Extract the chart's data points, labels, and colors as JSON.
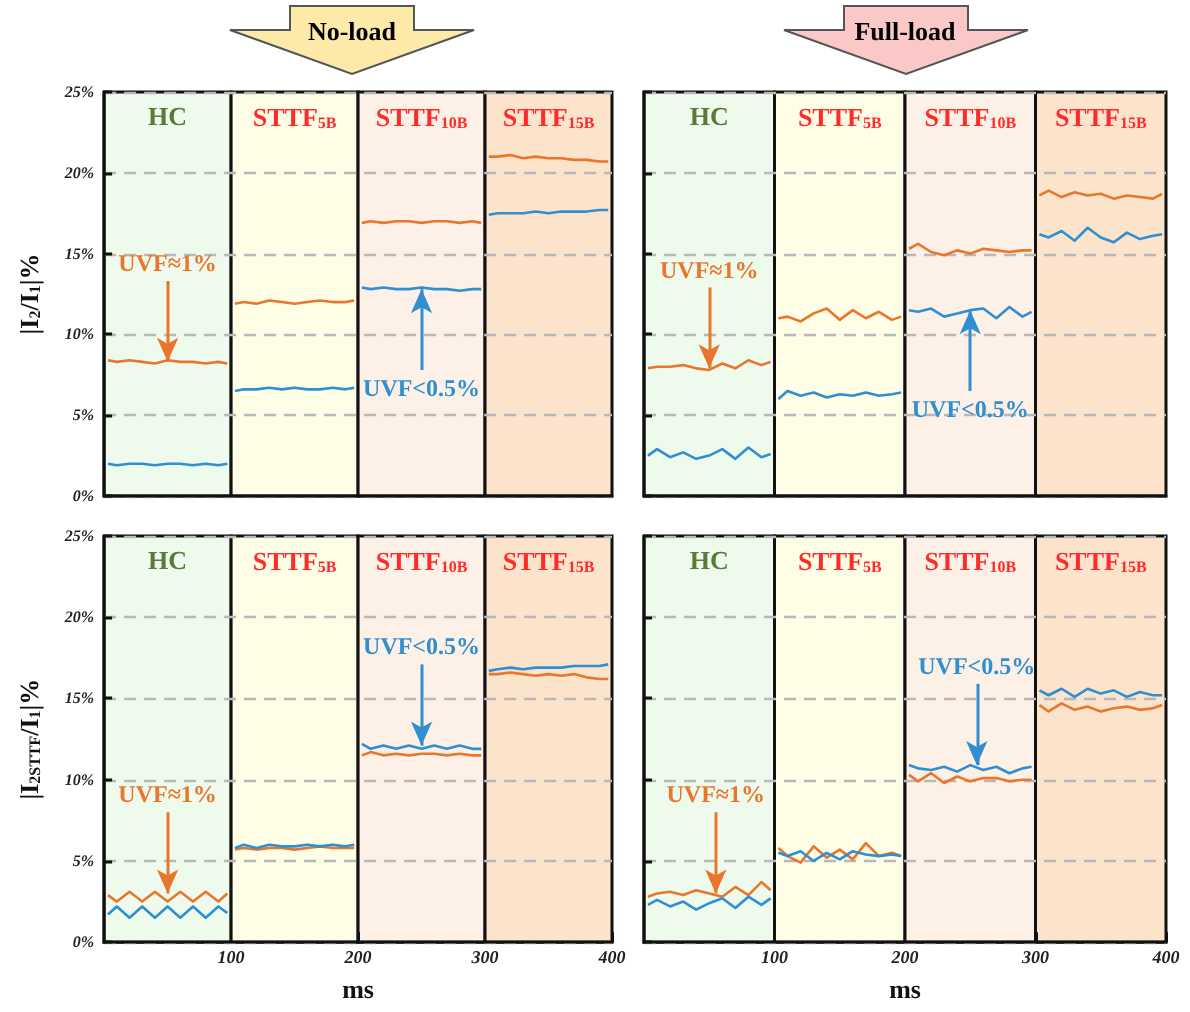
{
  "chart_data": [
    {
      "type": "line",
      "title": "No-load",
      "ylabel": "|I$_{2}$/I$_{1}$|%",
      "tick_labels": "y",
      "grid": "y",
      "line_style": "solid",
      "x": [
        3,
        10,
        20,
        30,
        40,
        50,
        60,
        70,
        80,
        90,
        97,
        100,
        103,
        110,
        120,
        130,
        140,
        150,
        160,
        170,
        180,
        190,
        197,
        200,
        203,
        210,
        220,
        230,
        240,
        250,
        260,
        270,
        280,
        290,
        297,
        300,
        303,
        310,
        320,
        330,
        340,
        350,
        360,
        370,
        380,
        390,
        397
      ],
      "xlim": [
        0,
        400
      ],
      "ylim": [
        0,
        25
      ],
      "yticks": [
        {
          "value": 0,
          "label": "0%"
        },
        {
          "value": 5,
          "label": "5%"
        },
        {
          "value": 10,
          "label": "10%"
        },
        {
          "value": 15,
          "label": "15%"
        },
        {
          "value": 20,
          "label": "20%"
        },
        {
          "value": 25,
          "label": "25%"
        }
      ],
      "series": [
        {
          "color": "#e8762d",
          "values": [
            8.4,
            8.3,
            8.4,
            8.3,
            8.2,
            8.4,
            8.3,
            8.3,
            8.2,
            8.3,
            8.2,
            null,
            11.9,
            12.0,
            11.9,
            12.1,
            12.0,
            11.9,
            12.0,
            12.1,
            12.0,
            12.0,
            12.1,
            null,
            16.9,
            17.0,
            16.9,
            17.0,
            17.0,
            16.9,
            17.0,
            17.0,
            16.9,
            17.0,
            16.9,
            null,
            21.0,
            21.0,
            21.1,
            20.9,
            21.0,
            20.9,
            20.9,
            20.8,
            20.8,
            20.7,
            20.7
          ]
        },
        {
          "color": "#2f8fd0",
          "values": [
            2.0,
            1.9,
            2.0,
            2.0,
            1.9,
            2.0,
            2.0,
            1.9,
            2.0,
            1.9,
            2.0,
            null,
            6.5,
            6.6,
            6.6,
            6.7,
            6.6,
            6.7,
            6.6,
            6.6,
            6.7,
            6.6,
            6.7,
            null,
            12.9,
            12.8,
            12.9,
            12.8,
            12.8,
            12.9,
            12.8,
            12.8,
            12.7,
            12.8,
            12.8,
            null,
            17.4,
            17.5,
            17.5,
            17.5,
            17.6,
            17.5,
            17.6,
            17.6,
            17.6,
            17.7,
            17.7
          ]
        }
      ],
      "bands": [
        {
          "axis": "x",
          "from": 0,
          "to": 100,
          "label": "HC",
          "color": "#eefaec"
        },
        {
          "axis": "x",
          "from": 100,
          "to": 200,
          "label": "STTF$_{5B}$",
          "color": "#fefde6"
        },
        {
          "axis": "x",
          "from": 200,
          "to": 300,
          "label": "STTF$_{10B}$",
          "color": "#fdf0e6"
        },
        {
          "axis": "x",
          "from": 300,
          "to": 400,
          "label": "STTF$_{15B}$",
          "color": "#fbe3cc"
        }
      ],
      "annotations": [
        {
          "text": "UVF≈1%",
          "x": 50,
          "y": 8.3
        },
        {
          "text": "UVF<0.5%",
          "x": 250,
          "y": 12.8
        }
      ]
    },
    {
      "type": "line",
      "title": "Full-load",
      "tick_labels": false,
      "grid": "y",
      "line_style": "solid",
      "x": [
        3,
        10,
        20,
        30,
        40,
        50,
        60,
        70,
        80,
        90,
        97,
        100,
        103,
        110,
        120,
        130,
        140,
        150,
        160,
        170,
        180,
        190,
        197,
        200,
        203,
        210,
        220,
        230,
        240,
        250,
        260,
        270,
        280,
        290,
        297,
        300,
        303,
        310,
        320,
        330,
        340,
        350,
        360,
        370,
        380,
        390,
        397
      ],
      "xlim": [
        0,
        400
      ],
      "ylim": [
        0,
        25
      ],
      "yticks": [
        0,
        5,
        10,
        15,
        20,
        25
      ],
      "series": [
        {
          "color": "#e8762d",
          "values": [
            7.9,
            8.0,
            8.0,
            8.1,
            7.9,
            7.8,
            8.2,
            7.9,
            8.4,
            8.1,
            8.3,
            null,
            11.0,
            11.1,
            10.8,
            11.3,
            11.6,
            10.9,
            11.5,
            11.0,
            11.4,
            10.9,
            11.1,
            null,
            15.3,
            15.6,
            15.1,
            14.9,
            15.2,
            15.0,
            15.3,
            15.2,
            15.1,
            15.2,
            15.2,
            null,
            18.6,
            18.9,
            18.5,
            18.8,
            18.6,
            18.7,
            18.4,
            18.6,
            18.5,
            18.4,
            18.7
          ]
        },
        {
          "color": "#2f8fd0",
          "values": [
            2.5,
            2.9,
            2.4,
            2.7,
            2.3,
            2.5,
            2.9,
            2.3,
            3.0,
            2.4,
            2.6,
            null,
            6.0,
            6.5,
            6.2,
            6.4,
            6.1,
            6.3,
            6.2,
            6.4,
            6.2,
            6.3,
            6.4,
            null,
            11.5,
            11.4,
            11.6,
            11.1,
            11.3,
            11.5,
            11.6,
            11.0,
            11.7,
            11.1,
            11.4,
            null,
            16.2,
            16.0,
            16.4,
            15.8,
            16.6,
            16.0,
            15.7,
            16.3,
            15.9,
            16.1,
            16.2
          ]
        }
      ],
      "bands": [
        {
          "axis": "x",
          "from": 0,
          "to": 100,
          "label": "HC",
          "color": "#eefaec"
        },
        {
          "axis": "x",
          "from": 100,
          "to": 200,
          "label": "STTF$_{5B}$",
          "color": "#fefde6"
        },
        {
          "axis": "x",
          "from": 200,
          "to": 300,
          "label": "STTF$_{10B}$",
          "color": "#fdf0e6"
        },
        {
          "axis": "x",
          "from": 300,
          "to": 400,
          "label": "STTF$_{15B}$",
          "color": "#fbe3cc"
        }
      ],
      "annotations": [
        {
          "text": "UVF≈1%",
          "x": 50,
          "y": 7.9
        },
        {
          "text": "UVF<0.5%",
          "x": 250,
          "y": 11.5
        }
      ]
    },
    {
      "type": "line",
      "xlabel": "ms",
      "ylabel": "|I$_{2STTF}$/I$_{1}$|%",
      "grid": "y",
      "line_style": "solid",
      "x": [
        3,
        10,
        20,
        30,
        40,
        50,
        60,
        70,
        80,
        90,
        97,
        100,
        103,
        110,
        120,
        130,
        140,
        150,
        160,
        170,
        180,
        190,
        197,
        200,
        203,
        210,
        220,
        230,
        240,
        250,
        260,
        270,
        280,
        290,
        297,
        300,
        303,
        310,
        320,
        330,
        340,
        350,
        360,
        370,
        380,
        390,
        397
      ],
      "xlim": [
        0,
        400
      ],
      "xticks": [
        {
          "value": 100,
          "label": "100"
        },
        {
          "value": 200,
          "label": "200"
        },
        {
          "value": 300,
          "label": "300"
        },
        {
          "value": 400,
          "label": "400"
        }
      ],
      "ylim": [
        0,
        25
      ],
      "yticks": [
        {
          "value": 0,
          "label": "0%"
        },
        {
          "value": 5,
          "label": "5%"
        },
        {
          "value": 10,
          "label": "10%"
        },
        {
          "value": 15,
          "label": "15%"
        },
        {
          "value": 20,
          "label": "20%"
        },
        {
          "value": 25,
          "label": "25%"
        }
      ],
      "series": [
        {
          "color": "#e8762d",
          "values": [
            2.9,
            2.5,
            3.1,
            2.5,
            3.1,
            2.5,
            3.1,
            2.5,
            3.1,
            2.5,
            3.0,
            null,
            5.7,
            5.8,
            5.7,
            5.8,
            5.8,
            5.7,
            5.8,
            5.9,
            5.8,
            5.8,
            5.8,
            null,
            11.5,
            11.7,
            11.5,
            11.6,
            11.5,
            11.6,
            11.6,
            11.5,
            11.6,
            11.5,
            11.5,
            null,
            16.5,
            16.5,
            16.6,
            16.5,
            16.4,
            16.5,
            16.4,
            16.5,
            16.3,
            16.2,
            16.2
          ]
        },
        {
          "color": "#2f8fd0",
          "values": [
            1.7,
            2.2,
            1.5,
            2.2,
            1.5,
            2.2,
            1.5,
            2.2,
            1.5,
            2.2,
            1.8,
            null,
            5.8,
            6.0,
            5.8,
            6.0,
            5.9,
            5.9,
            6.0,
            5.9,
            6.0,
            5.9,
            6.0,
            null,
            12.2,
            11.9,
            12.1,
            11.9,
            12.1,
            11.9,
            12.1,
            11.9,
            12.1,
            11.9,
            11.9,
            null,
            16.7,
            16.8,
            16.9,
            16.8,
            16.9,
            16.9,
            16.9,
            17.0,
            17.0,
            17.0,
            17.1
          ]
        }
      ],
      "bands": [
        {
          "axis": "x",
          "from": 0,
          "to": 100,
          "label": "HC",
          "color": "#eefaec"
        },
        {
          "axis": "x",
          "from": 100,
          "to": 200,
          "label": "STTF$_{5B}$",
          "color": "#fefde6"
        },
        {
          "axis": "x",
          "from": 200,
          "to": 300,
          "label": "STTF$_{10B}$",
          "color": "#fdf0e6"
        },
        {
          "axis": "x",
          "from": 300,
          "to": 400,
          "label": "STTF$_{15B}$",
          "color": "#fbe3cc"
        }
      ],
      "annotations": [
        {
          "text": "UVF≈1%",
          "x": 50,
          "y": 3.0
        },
        {
          "text": "UVF<0.5%",
          "x": 250,
          "y": 12.1
        }
      ]
    },
    {
      "type": "line",
      "xlabel": "ms",
      "tick_labels": "x",
      "grid": "y",
      "line_style": "solid",
      "x": [
        3,
        10,
        20,
        30,
        40,
        50,
        60,
        70,
        80,
        90,
        97,
        100,
        103,
        110,
        120,
        130,
        140,
        150,
        160,
        170,
        180,
        190,
        197,
        200,
        203,
        210,
        220,
        230,
        240,
        250,
        260,
        270,
        280,
        290,
        297,
        300,
        303,
        310,
        320,
        330,
        340,
        350,
        360,
        370,
        380,
        390,
        397
      ],
      "xlim": [
        0,
        400
      ],
      "xticks": [
        {
          "value": 100,
          "label": "100"
        },
        {
          "value": 200,
          "label": "200"
        },
        {
          "value": 300,
          "label": "300"
        },
        {
          "value": 400,
          "label": "400"
        }
      ],
      "ylim": [
        0,
        25
      ],
      "yticks": [
        0,
        5,
        10,
        15,
        20,
        25
      ],
      "series": [
        {
          "color": "#e8762d",
          "values": [
            2.8,
            3.0,
            3.1,
            2.9,
            3.2,
            3.0,
            2.8,
            3.4,
            2.9,
            3.7,
            3.2,
            null,
            5.8,
            5.3,
            4.9,
            5.9,
            5.2,
            5.7,
            5.1,
            6.1,
            5.3,
            5.5,
            5.3,
            null,
            10.3,
            9.9,
            10.4,
            9.8,
            10.2,
            9.9,
            10.1,
            10.1,
            9.9,
            10.0,
            10.0,
            null,
            14.6,
            14.2,
            14.7,
            14.3,
            14.5,
            14.2,
            14.4,
            14.5,
            14.3,
            14.4,
            14.6
          ]
        },
        {
          "color": "#2f8fd0",
          "values": [
            2.3,
            2.6,
            2.2,
            2.5,
            2.0,
            2.4,
            2.7,
            2.1,
            2.8,
            2.3,
            2.7,
            null,
            5.5,
            5.3,
            5.6,
            5.0,
            5.5,
            5.1,
            5.6,
            5.4,
            5.3,
            5.4,
            5.3,
            null,
            10.9,
            10.7,
            10.6,
            10.8,
            10.5,
            10.9,
            10.6,
            10.8,
            10.4,
            10.7,
            10.8,
            null,
            15.5,
            15.2,
            15.6,
            15.1,
            15.6,
            15.3,
            15.5,
            15.1,
            15.4,
            15.2,
            15.2
          ]
        }
      ],
      "bands": [
        {
          "axis": "x",
          "from": 0,
          "to": 100,
          "label": "HC",
          "color": "#eefaec"
        },
        {
          "axis": "x",
          "from": 100,
          "to": 200,
          "label": "STTF$_{5B}$",
          "color": "#fefde6"
        },
        {
          "axis": "x",
          "from": 200,
          "to": 300,
          "label": "STTF$_{10B}$",
          "color": "#fdf0e6"
        },
        {
          "axis": "x",
          "from": 300,
          "to": 400,
          "label": "STTF$_{15B}$",
          "color": "#fbe3cc"
        }
      ],
      "annotations": [
        {
          "text": "UVF≈1%",
          "x": 55,
          "y": 3.0
        },
        {
          "text": "UVF<0.5%",
          "x": 255,
          "y": 10.9
        }
      ]
    }
  ]
}
